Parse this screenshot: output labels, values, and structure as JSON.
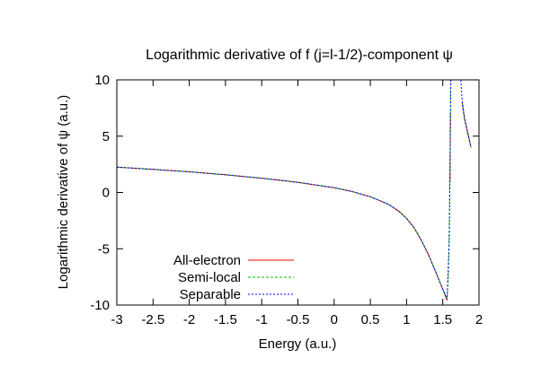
{
  "chart_data": {
    "type": "line",
    "title": "Logarithmic derivative of f (j=l-1/2)-component ψ",
    "xlabel": "Energy (a.u.)",
    "ylabel": "Logarithmic derivative of ψ (a.u.)",
    "xlim": [
      -3,
      2
    ],
    "ylim": [
      -10,
      10
    ],
    "xticks": [
      -3,
      -2.5,
      -2,
      -1.5,
      -1,
      -0.5,
      0,
      0.5,
      1,
      1.5,
      2
    ],
    "xtick_labels": [
      "-3",
      "-2.5",
      "-2",
      "-1.5",
      "-1",
      "-0.5",
      "0",
      "0.5",
      "1",
      "1.5",
      "2"
    ],
    "yticks": [
      -10,
      -5,
      0,
      5,
      10
    ],
    "ytick_labels": [
      "-10",
      "-5",
      "0",
      "5",
      "10"
    ],
    "grid": false,
    "legend_position": "bottom-left",
    "series": [
      {
        "name": "All-electron",
        "color": "#ff0000",
        "dash": "solid",
        "segments": [
          [
            [
              -3,
              2.25
            ],
            [
              -2.5,
              2.05
            ],
            [
              -2,
              1.83
            ],
            [
              -1.5,
              1.57
            ],
            [
              -1,
              1.27
            ],
            [
              -0.5,
              0.9
            ],
            [
              0,
              0.42
            ],
            [
              0.25,
              0.08
            ],
            [
              0.5,
              -0.38
            ],
            [
              0.75,
              -1.05
            ],
            [
              0.9,
              -1.7
            ],
            [
              1.0,
              -2.3
            ],
            [
              1.1,
              -3.1
            ],
            [
              1.2,
              -4.2
            ],
            [
              1.3,
              -5.5
            ],
            [
              1.4,
              -7.0
            ],
            [
              1.5,
              -8.6
            ],
            [
              1.56,
              -9.6
            ]
          ],
          [
            [
              1.6,
              1.0
            ],
            [
              1.605,
              7.0
            ]
          ],
          [
            [
              1.77,
              8.0
            ],
            [
              1.8,
              6.6
            ],
            [
              1.85,
              5.2
            ],
            [
              1.89,
              4.0
            ]
          ]
        ]
      },
      {
        "name": "Semi-local",
        "color": "#00c000",
        "dash": "3,2",
        "segments": [
          [
            [
              -3,
              2.25
            ],
            [
              -2.5,
              2.05
            ],
            [
              -2,
              1.83
            ],
            [
              -1.5,
              1.57
            ],
            [
              -1,
              1.27
            ],
            [
              -0.5,
              0.9
            ],
            [
              0,
              0.42
            ],
            [
              0.25,
              0.08
            ],
            [
              0.5,
              -0.38
            ],
            [
              0.75,
              -1.05
            ],
            [
              0.9,
              -1.7
            ],
            [
              1.0,
              -2.3
            ],
            [
              1.1,
              -3.1
            ],
            [
              1.2,
              -4.2
            ],
            [
              1.3,
              -5.5
            ],
            [
              1.4,
              -7.0
            ],
            [
              1.5,
              -8.6
            ],
            [
              1.56,
              -9.4
            ],
            [
              1.58,
              -7.0
            ],
            [
              1.6,
              2.0
            ],
            [
              1.61,
              10.0
            ]
          ],
          [
            [
              1.77,
              7.9
            ],
            [
              1.8,
              6.5
            ],
            [
              1.85,
              5.1
            ],
            [
              1.89,
              4.0
            ]
          ]
        ]
      },
      {
        "name": "Separable",
        "color": "#0000ff",
        "dash": "2,2",
        "segments": [
          [
            [
              -3,
              2.25
            ],
            [
              -2.5,
              2.05
            ],
            [
              -2,
              1.83
            ],
            [
              -1.5,
              1.57
            ],
            [
              -1,
              1.27
            ],
            [
              -0.5,
              0.9
            ],
            [
              0,
              0.42
            ],
            [
              0.25,
              0.08
            ],
            [
              0.5,
              -0.38
            ],
            [
              0.75,
              -1.05
            ],
            [
              0.9,
              -1.7
            ],
            [
              1.0,
              -2.3
            ],
            [
              1.1,
              -3.1
            ],
            [
              1.2,
              -4.2
            ],
            [
              1.3,
              -5.5
            ],
            [
              1.4,
              -7.0
            ],
            [
              1.5,
              -8.6
            ],
            [
              1.56,
              -9.5
            ],
            [
              1.59,
              -4.0
            ],
            [
              1.6,
              3.0
            ],
            [
              1.61,
              10.0
            ]
          ],
          [
            [
              1.75,
              10.0
            ],
            [
              1.77,
              7.8
            ],
            [
              1.8,
              6.5
            ],
            [
              1.85,
              5.1
            ],
            [
              1.89,
              4.0
            ]
          ]
        ]
      }
    ]
  }
}
